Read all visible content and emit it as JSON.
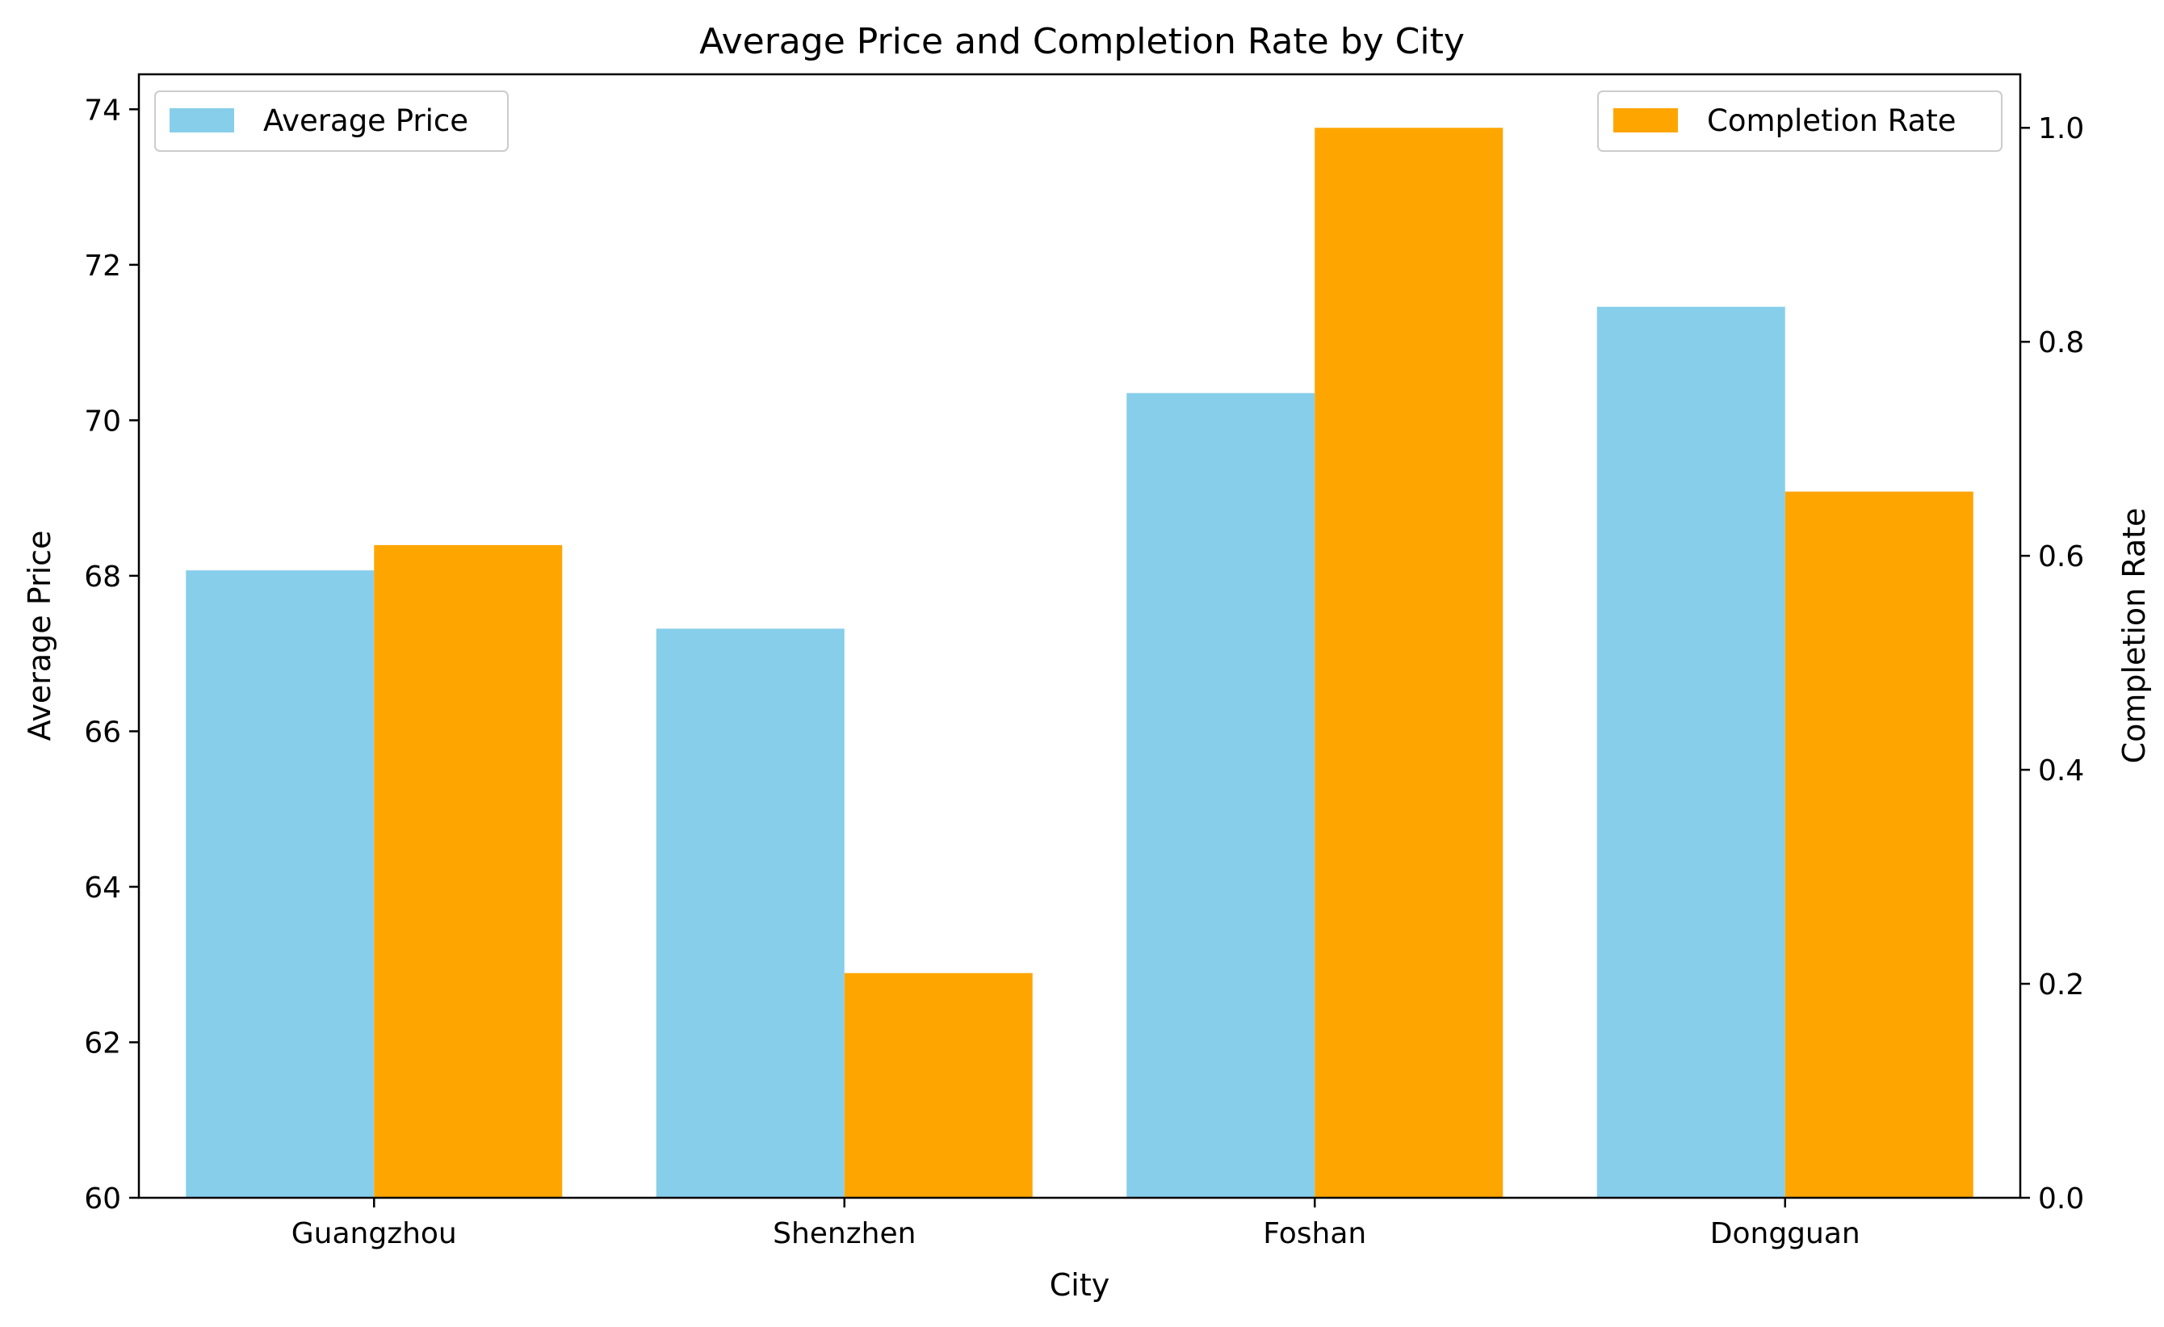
{
  "chart_data": {
    "type": "bar",
    "title": "Average Price and Completion Rate by City",
    "xlabel": "City",
    "categories": [
      "Guangzhou",
      "Shenzhen",
      "Foshan",
      "Dongguan"
    ],
    "series": [
      {
        "name": "Average Price",
        "axis": "left",
        "color": "#87ceeb",
        "values": [
          68.07,
          67.32,
          70.35,
          71.46
        ]
      },
      {
        "name": "Completion Rate",
        "axis": "right",
        "color": "#ffa500",
        "values": [
          0.61,
          0.21,
          1.0,
          0.66
        ]
      }
    ],
    "y_left": {
      "label": "Average Price",
      "lim": [
        60,
        74.45
      ],
      "ticks": [
        60,
        62,
        64,
        66,
        68,
        70,
        72,
        74
      ]
    },
    "y_right": {
      "label": "Completion Rate",
      "lim": [
        0,
        1.05
      ],
      "ticks": [
        0.0,
        0.2,
        0.4,
        0.6,
        0.8,
        1.0
      ]
    },
    "legends": [
      {
        "position": "top-left",
        "series": "Average Price"
      },
      {
        "position": "top-right",
        "series": "Completion Rate"
      }
    ],
    "grid": false
  }
}
